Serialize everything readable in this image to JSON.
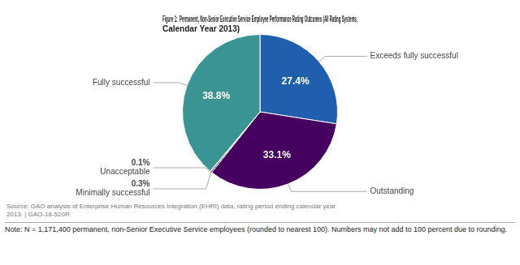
{
  "chart_data": {
    "type": "pie",
    "title": [
      "Figure 1:  Permanent, Non-Senior Executive Service Employee Performance Rating Outcomes (All Rating Systems,",
      "Calendar Year 2013)"
    ],
    "categories": [
      "Exceeds fully successful",
      "Outstanding",
      "Minimally successful",
      "Unacceptable",
      "Fully successful"
    ],
    "values": [
      27.4,
      33.1,
      0.3,
      0.1,
      38.8
    ],
    "value_labels": [
      "27.4%",
      "33.1%",
      "0.3%",
      "0.1%",
      "38.8%"
    ],
    "colors": [
      "#1F5FAD",
      "#450060",
      "#5A2060",
      "#6A306A",
      "#3A9494"
    ],
    "data_labels": true,
    "annotations": [
      "Source: GAO analysis of Enterprise Human Resources Integration (EHRI) data, rating period ending calendar year\n2013. | GAO-18-520R",
      "Note: N = 1,171,400 permanent, non-Senior Executive Service employees (rounded to nearest 100). Numbers may not add to 100 percent due to rounding."
    ]
  }
}
